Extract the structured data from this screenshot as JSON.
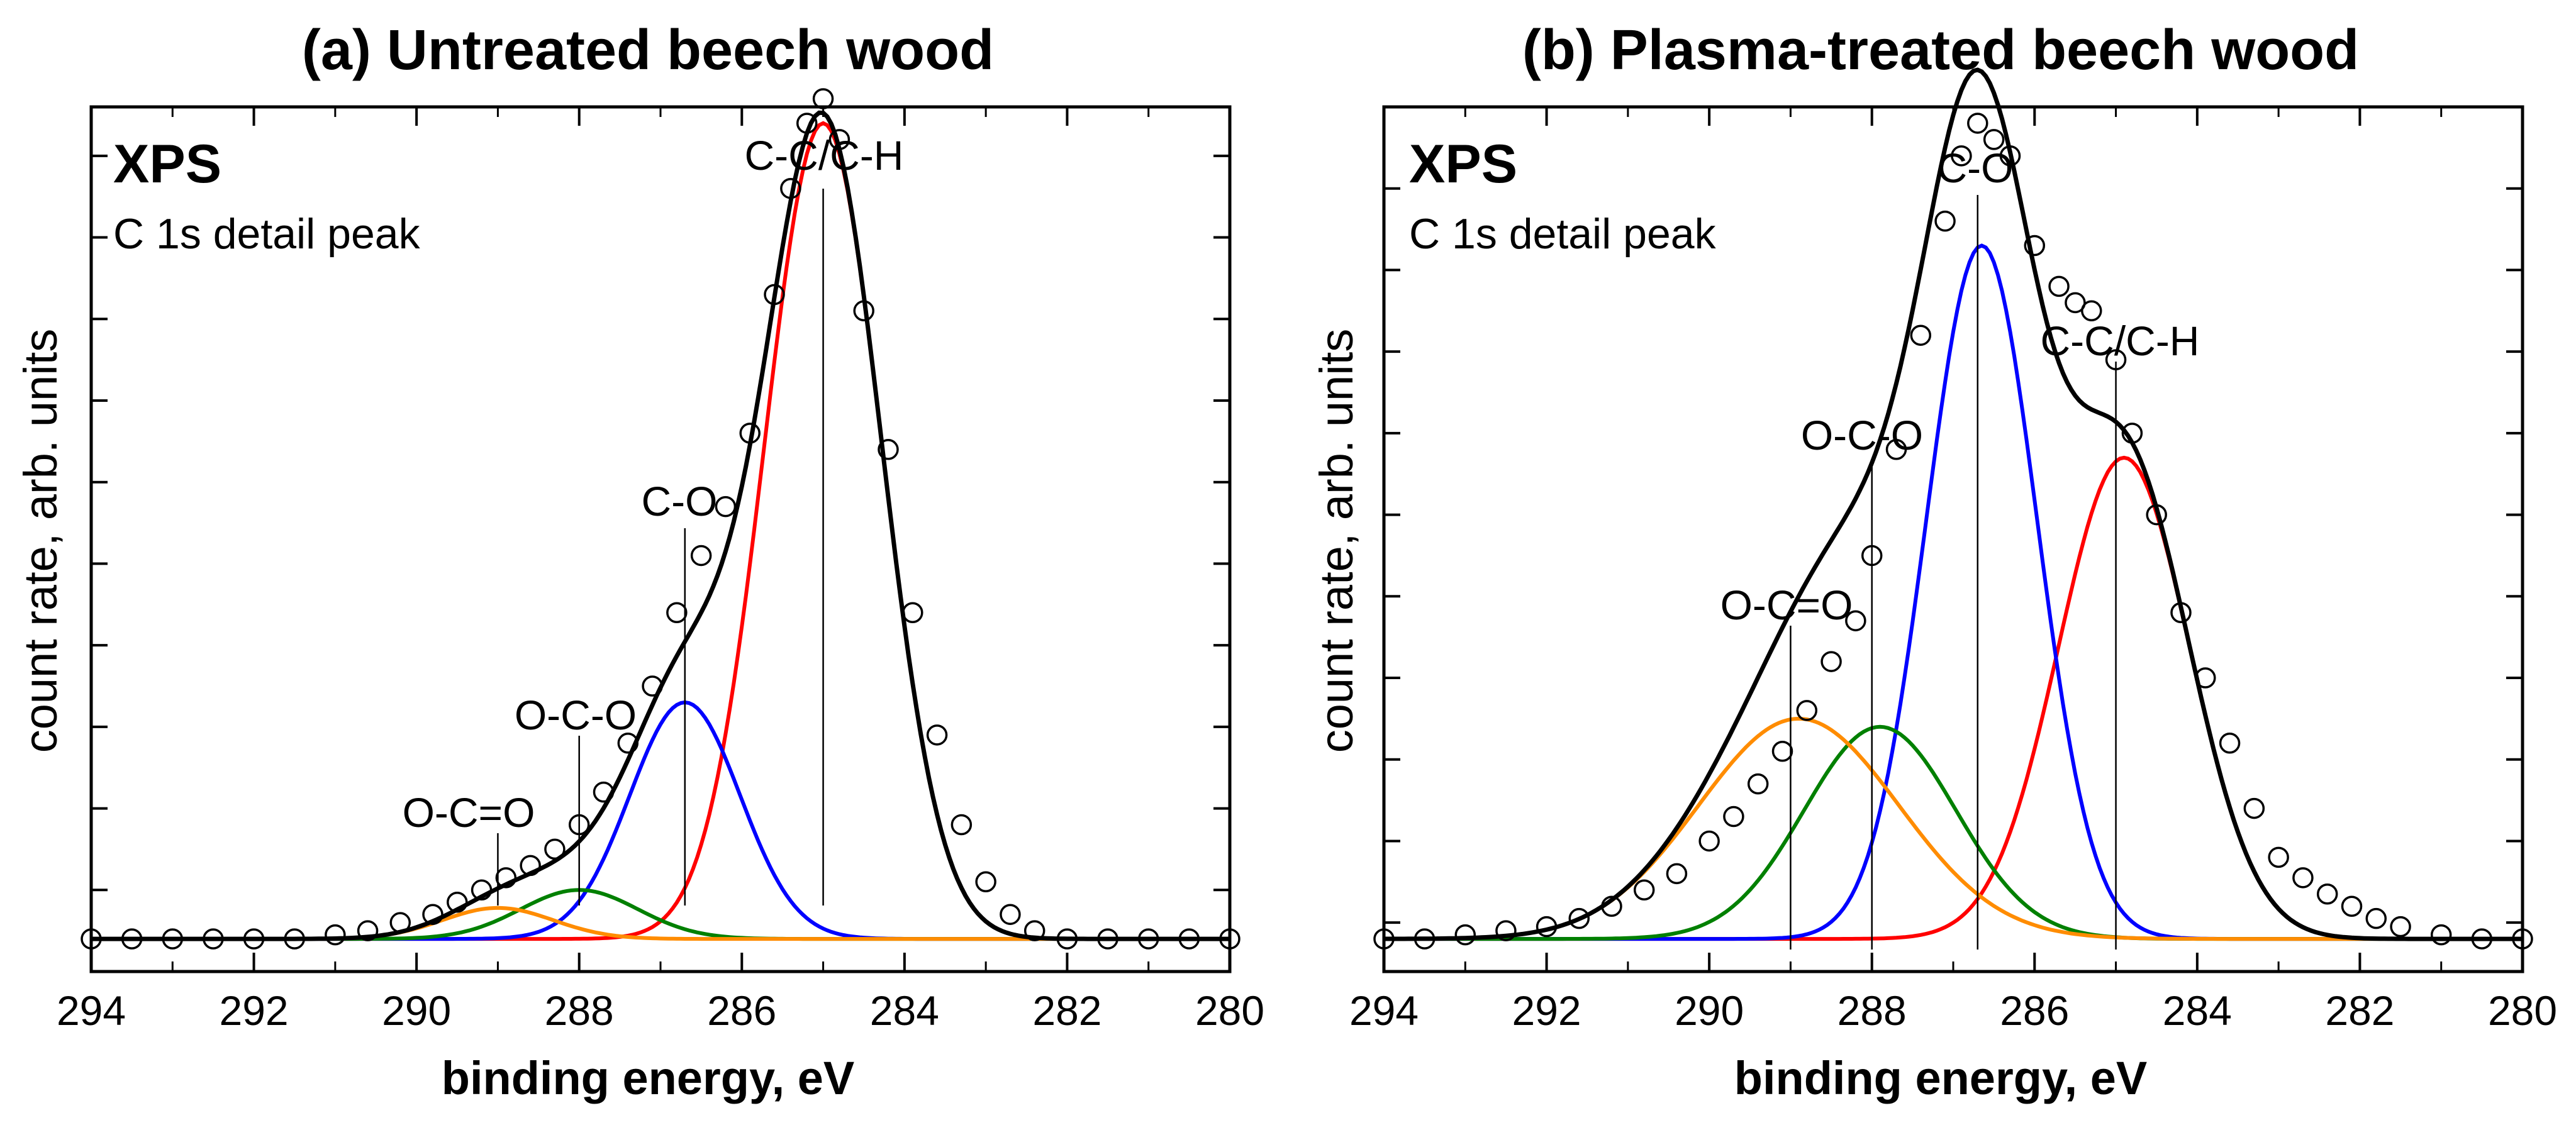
{
  "figure": {
    "xlabel": "binding energy, eV",
    "ylabel": "count rate, arb. units"
  },
  "chart_data": [
    {
      "type": "line",
      "title": "(a) Untreated beech wood",
      "xps_label": "XPS",
      "sub_label": "C 1s detail peak",
      "xlabel": "binding energy, eV",
      "ylabel": "count rate, arb. units",
      "xlim": [
        294,
        280
      ],
      "ylim": [
        -0.04,
        1.02
      ],
      "xticks": [
        294,
        292,
        290,
        288,
        286,
        284,
        282,
        280
      ],
      "tick_labels": [
        "294",
        "292",
        "290",
        "288",
        "286",
        "284",
        "282",
        "280"
      ],
      "measured_points": {
        "name": "measured",
        "x": [
          294.0,
          293.5,
          293.0,
          292.5,
          292.0,
          291.5,
          291.0,
          290.6,
          290.2,
          289.8,
          289.5,
          289.2,
          288.9,
          288.6,
          288.3,
          288.0,
          287.7,
          287.4,
          287.1,
          286.8,
          286.5,
          286.2,
          285.9,
          285.6,
          285.4,
          285.2,
          285.0,
          284.8,
          284.5,
          284.2,
          283.9,
          283.6,
          283.3,
          283.0,
          282.7,
          282.4,
          282.0,
          281.5,
          281.0,
          280.5,
          280.0
        ],
        "y": [
          0.0,
          0.0,
          0.0,
          0.0,
          0.0,
          0.0,
          0.005,
          0.01,
          0.02,
          0.03,
          0.045,
          0.06,
          0.075,
          0.09,
          0.11,
          0.14,
          0.18,
          0.24,
          0.31,
          0.4,
          0.47,
          0.53,
          0.62,
          0.79,
          0.92,
          1.0,
          1.03,
          0.98,
          0.77,
          0.6,
          0.4,
          0.25,
          0.14,
          0.07,
          0.03,
          0.01,
          0.0,
          0.0,
          0.0,
          0.0,
          0.0
        ]
      },
      "components": [
        {
          "name": "envelope",
          "color": "#000000",
          "center": null
        },
        {
          "name": "C-C/C-H",
          "color": "#ff0000",
          "center": 285.0,
          "amplitude": 1.0,
          "fwhm": 1.7
        },
        {
          "name": "C-O",
          "color": "#0000ff",
          "center": 286.7,
          "amplitude": 0.29,
          "fwhm": 1.6
        },
        {
          "name": "O-C-O",
          "color": "#008000",
          "center": 288.0,
          "amplitude": 0.06,
          "fwhm": 1.7
        },
        {
          "name": "O-C=O",
          "color": "#ff8c00",
          "center": 289.0,
          "amplitude": 0.038,
          "fwhm": 1.6
        }
      ],
      "peak_labels": [
        {
          "text": "C-C/C-H",
          "x": 285.0
        },
        {
          "text": "C-O",
          "x": 286.7
        },
        {
          "text": "O-C-O",
          "x": 288.0
        },
        {
          "text": "O-C=O",
          "x": 289.0
        }
      ]
    },
    {
      "type": "line",
      "title": "(b) Plasma-treated beech wood",
      "xps_label": "XPS",
      "sub_label": "C 1s detail peak",
      "xlabel": "binding energy, eV",
      "ylabel": "count rate, arb. units",
      "xlim": [
        294,
        280
      ],
      "ylim": [
        -0.04,
        1.02
      ],
      "xticks": [
        294,
        292,
        290,
        288,
        286,
        284,
        282,
        280
      ],
      "tick_labels": [
        "294",
        "292",
        "290",
        "288",
        "286",
        "284",
        "282",
        "280"
      ],
      "measured_points": {
        "name": "measured",
        "x": [
          294.0,
          293.5,
          293.0,
          292.5,
          292.0,
          291.6,
          291.2,
          290.8,
          290.4,
          290.0,
          289.7,
          289.4,
          289.1,
          288.8,
          288.5,
          288.2,
          288.0,
          287.7,
          287.4,
          287.1,
          286.9,
          286.7,
          286.5,
          286.3,
          286.0,
          285.7,
          285.5,
          285.3,
          285.0,
          284.8,
          284.5,
          284.2,
          283.9,
          283.6,
          283.3,
          283.0,
          282.7,
          282.4,
          282.1,
          281.8,
          281.5,
          281.0,
          280.5,
          280.0
        ],
        "y": [
          0.0,
          0.0,
          0.005,
          0.01,
          0.015,
          0.025,
          0.04,
          0.06,
          0.08,
          0.12,
          0.15,
          0.19,
          0.23,
          0.28,
          0.34,
          0.39,
          0.47,
          0.6,
          0.74,
          0.88,
          0.96,
          1.0,
          0.98,
          0.96,
          0.85,
          0.8,
          0.78,
          0.77,
          0.71,
          0.62,
          0.52,
          0.4,
          0.32,
          0.24,
          0.16,
          0.1,
          0.075,
          0.055,
          0.04,
          0.025,
          0.015,
          0.005,
          0.0,
          0.0
        ]
      },
      "components": [
        {
          "name": "envelope",
          "color": "#000000",
          "center": null
        },
        {
          "name": "C-C/C-H",
          "color": "#ff0000",
          "center": 284.9,
          "amplitude": 0.59,
          "fwhm": 1.9
        },
        {
          "name": "C-O",
          "color": "#0000ff",
          "center": 286.65,
          "amplitude": 0.85,
          "fwhm": 1.6
        },
        {
          "name": "O-C-O",
          "color": "#008000",
          "center": 287.9,
          "amplitude": 0.26,
          "fwhm": 2.2
        },
        {
          "name": "O-C=O",
          "color": "#ff8c00",
          "center": 288.9,
          "amplitude": 0.27,
          "fwhm": 2.9
        }
      ],
      "peak_labels": [
        {
          "text": "C-O",
          "x": 286.7
        },
        {
          "text": "C-C/C-H",
          "x": 285.0
        },
        {
          "text": "O-C-O",
          "x": 288.0
        },
        {
          "text": "O-C=O",
          "x": 289.0
        }
      ]
    }
  ]
}
